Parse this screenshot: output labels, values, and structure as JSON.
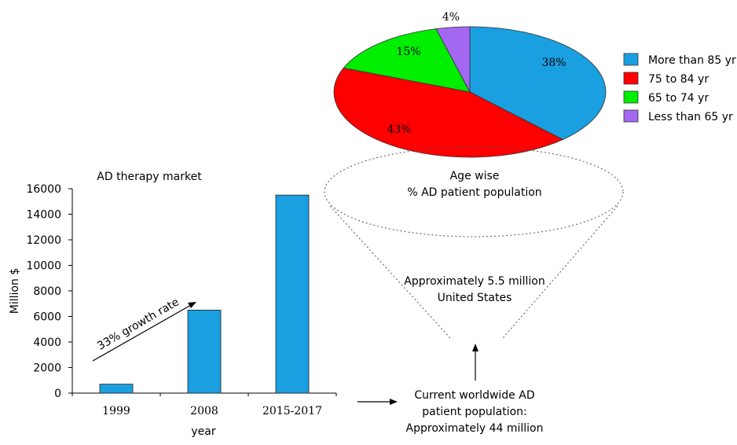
{
  "colors": {
    "more_than_85": "#1a9fe0",
    "75_to_84": "#ff0000",
    "65_to_74": "#00ee00",
    "less_than_65": "#a468f0",
    "bar": "#1a9fe0",
    "axis": "#000000",
    "dotted": "#555555"
  },
  "chart_data": [
    {
      "type": "pie",
      "title": "",
      "slices": [
        {
          "label": "More than 85 yr",
          "value": 38,
          "text": "38%",
          "color_key": "more_than_85"
        },
        {
          "label": "75 to 84 yr",
          "value": 43,
          "text": "43%",
          "color_key": "75_to_84"
        },
        {
          "label": "65 to 74 yr",
          "value": 15,
          "text": "15%",
          "color_key": "65_to_74"
        },
        {
          "label": "Less than 65 yr",
          "value": 4,
          "text": "4%",
          "color_key": "less_than_65"
        }
      ],
      "legend": "right"
    },
    {
      "type": "bar",
      "title": "AD therapy market",
      "xlabel": "year",
      "ylabel": "Million $",
      "categories": [
        "1999",
        "2008",
        "2015-2017"
      ],
      "values": [
        700,
        6500,
        15500
      ],
      "ylim": [
        0,
        16000
      ],
      "yticks": [
        0,
        2000,
        4000,
        6000,
        8000,
        10000,
        12000,
        14000,
        16000
      ],
      "annotation": "33% growth rate",
      "grid": false
    }
  ],
  "funnel": {
    "top_line1": "Age wise",
    "top_line2": "% AD patient population",
    "middle_line1": "Approximately 5.5 million",
    "middle_line2": "United States",
    "bottom_line1": "Current worldwide AD",
    "bottom_line2": "patient population:",
    "bottom_line3": "Approximately 44 million"
  }
}
